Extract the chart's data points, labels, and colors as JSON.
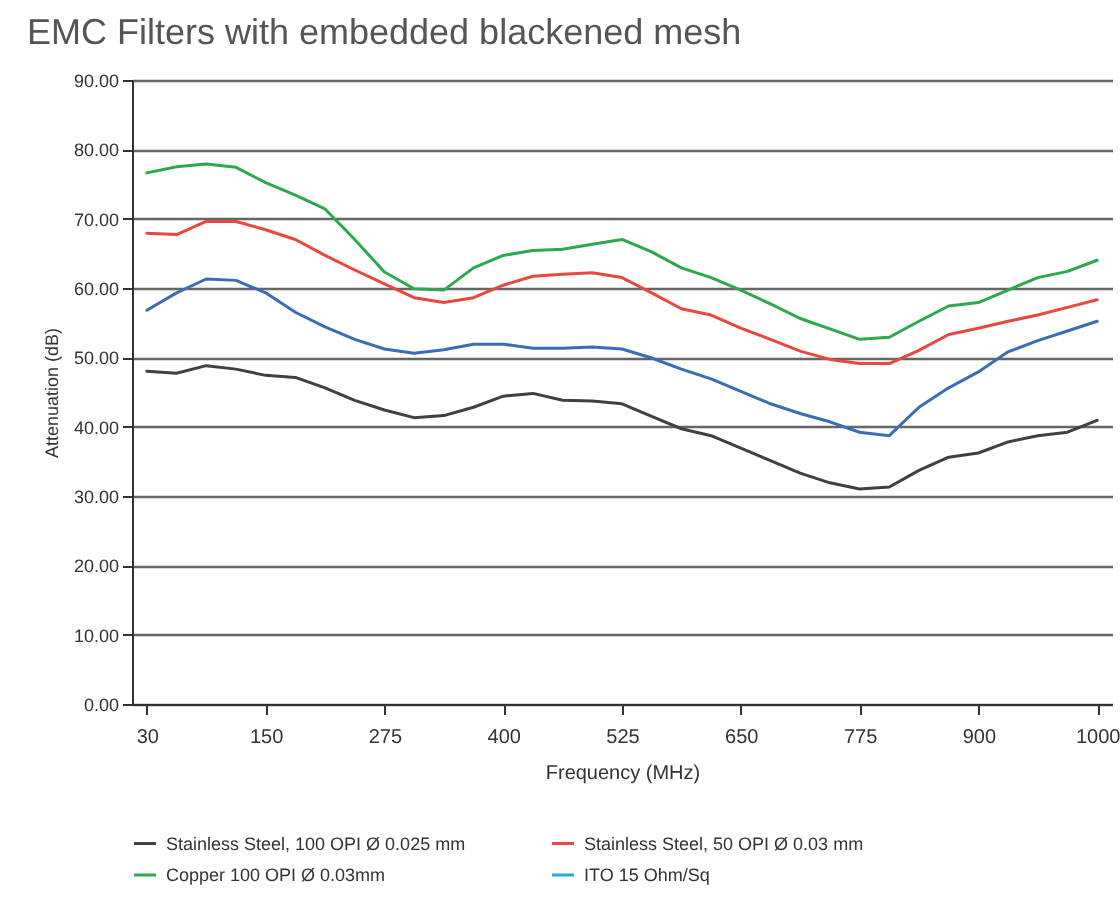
{
  "chart_data": {
    "type": "line",
    "title": "EMC Filters with embedded blackened mesh",
    "xlabel": "Frequency (MHz)",
    "ylabel": "Attenuation (dB)",
    "categories": [
      "30",
      null,
      null,
      null,
      "150",
      null,
      null,
      null,
      "275",
      null,
      null,
      null,
      "400",
      null,
      null,
      null,
      "525",
      null,
      null,
      null,
      "650",
      null,
      null,
      null,
      "775",
      null,
      null,
      null,
      "900",
      null,
      null,
      null,
      "1000"
    ],
    "series": [
      {
        "name": "Stainless Steel, 100 OPI Ø 0.025 mm",
        "color": "#404040",
        "values": [
          48.0,
          47.7,
          48.8,
          48.3,
          47.4,
          47.1,
          45.6,
          43.8,
          42.4,
          41.3,
          41.6,
          42.8,
          44.4,
          44.8,
          43.8,
          43.7,
          43.3,
          41.5,
          39.7,
          38.7,
          36.9,
          35.1,
          33.3,
          31.9,
          31.0,
          31.3,
          33.7,
          35.6,
          36.2,
          37.8,
          38.7,
          39.2,
          40.9
        ]
      },
      {
        "name": "Stainless Steel, 50 OPI Ø  0.03 mm",
        "color": "#e8483f",
        "values": [
          67.9,
          67.7,
          69.6,
          69.6,
          68.4,
          67.0,
          64.7,
          62.6,
          60.6,
          58.6,
          57.9,
          58.6,
          60.4,
          61.7,
          62.0,
          62.2,
          61.5,
          59.3,
          57.0,
          56.1,
          54.2,
          52.6,
          50.9,
          49.7,
          49.1,
          49.1,
          51.0,
          53.3,
          54.2,
          55.2,
          56.1,
          57.2,
          58.3
        ]
      },
      {
        "name": "Copper 100 OPI Ø 0.03mm",
        "color": "#2ea84e",
        "values": [
          76.6,
          77.5,
          77.9,
          77.4,
          75.2,
          73.4,
          71.4,
          67.0,
          62.3,
          59.9,
          59.7,
          62.9,
          64.7,
          65.4,
          65.6,
          66.3,
          67.0,
          65.2,
          62.9,
          61.5,
          59.7,
          57.7,
          55.6,
          54.1,
          52.6,
          52.9,
          55.2,
          57.4,
          57.9,
          59.7,
          61.5,
          62.4,
          64.0
        ]
      },
      {
        "name": "ITO 15 Ohm/Sq",
        "color": "#29a9e0",
        "values": [
          null,
          null,
          null,
          null,
          null,
          null,
          null,
          null,
          null,
          null,
          null,
          null,
          null,
          null,
          null,
          null,
          null,
          null,
          null,
          null,
          null,
          null,
          null,
          null,
          null,
          null,
          null,
          null,
          null,
          null,
          null,
          null,
          null
        ]
      },
      {
        "name": null,
        "color": "#3b6db5",
        "values": [
          56.8,
          59.3,
          61.3,
          61.1,
          59.3,
          56.5,
          54.4,
          52.6,
          51.2,
          50.6,
          51.1,
          51.9,
          51.9,
          51.3,
          51.3,
          51.5,
          51.2,
          49.9,
          48.3,
          46.9,
          45.1,
          43.3,
          41.9,
          40.7,
          39.2,
          38.7,
          42.8,
          45.6,
          47.9,
          50.8,
          52.4,
          53.8,
          55.2
        ]
      }
    ],
    "ylim": [
      0,
      90
    ],
    "yticks": [
      {
        "value": 0,
        "label": "0.00"
      },
      {
        "value": 10,
        "label": "10.00"
      },
      {
        "value": 20,
        "label": "20.00"
      },
      {
        "value": 30,
        "label": "30.00"
      },
      {
        "value": 40,
        "label": "40.00"
      },
      {
        "value": 50,
        "label": "50.00"
      },
      {
        "value": 60,
        "label": "60.00"
      },
      {
        "value": 70,
        "label": "70.00"
      },
      {
        "value": 80,
        "label": "80.00"
      },
      {
        "value": 90,
        "label": "90.00"
      }
    ],
    "grid": "y",
    "legend": "bottom",
    "line_style": "solid"
  }
}
